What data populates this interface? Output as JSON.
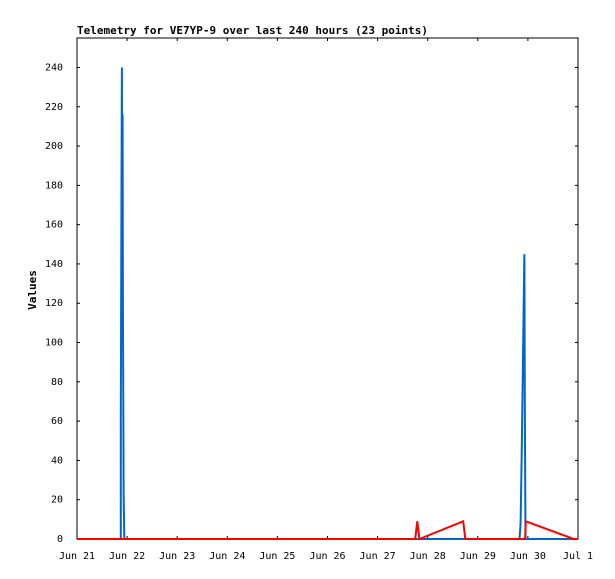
{
  "chart_data": {
    "type": "line",
    "title": "Telemetry for VE7YP-9 over last 240 hours (23 points)",
    "xlabel": "",
    "ylabel": "Values",
    "x_ticks": [
      "Jun 21",
      "Jun 22",
      "Jun 23",
      "Jun 24",
      "Jun 25",
      "Jun 26",
      "Jun 27",
      "Jun 28",
      "Jun 29",
      "Jun 30",
      "Jul 1"
    ],
    "y_ticks": [
      "0",
      "20",
      "40",
      "60",
      "80",
      "100",
      "120",
      "140",
      "160",
      "180",
      "200",
      "220",
      "240"
    ],
    "xlim": [
      "Jun 21 00:00",
      "Jul 1 00:00"
    ],
    "ylim": [
      0,
      255
    ],
    "grid": false,
    "legend": "none",
    "series": [
      {
        "color": "#0066cc",
        "points": [
          [
            "Jun 21 21:00",
            0
          ],
          [
            "Jun 21 21:00",
            60
          ],
          [
            "Jun 21 21:20",
            180
          ],
          [
            "Jun 21 21:30",
            240
          ],
          [
            "Jun 21 21:40",
            168
          ],
          [
            "Jun 21 21:50",
            216
          ],
          [
            "Jun 21 22:00",
            120
          ],
          [
            "Jun 21 22:10",
            72
          ],
          [
            "Jun 21 22:20",
            24
          ],
          [
            "Jun 21 22:40",
            0
          ],
          [
            "Jun 29 20:00",
            0
          ],
          [
            "Jun 29 20:30",
            8
          ],
          [
            "Jun 29 21:00",
            40
          ],
          [
            "Jun 29 21:30",
            80
          ],
          [
            "Jun 29 21:45",
            100
          ],
          [
            "Jun 29 22:00",
            120
          ],
          [
            "Jun 29 22:15",
            140
          ],
          [
            "Jun 29 22:20",
            145
          ],
          [
            "Jun 29 22:30",
            72
          ],
          [
            "Jun 29 22:50",
            0
          ],
          [
            "Jul 1 00:00",
            0
          ]
        ]
      },
      {
        "color": "#ff0000",
        "points": [
          [
            "Jun 21 00:00",
            0
          ],
          [
            "Jun 27 18:00",
            0
          ],
          [
            "Jun 27 19:00",
            9
          ],
          [
            "Jun 27 20:00",
            0
          ],
          [
            "Jun 28 17:00",
            9
          ],
          [
            "Jun 28 18:00",
            0
          ],
          [
            "Jun 29 22:40",
            0
          ],
          [
            "Jun 29 23:00",
            9
          ],
          [
            "Jun 30 22:00",
            0
          ],
          [
            "Jul 1 00:00",
            0
          ]
        ]
      }
    ]
  }
}
